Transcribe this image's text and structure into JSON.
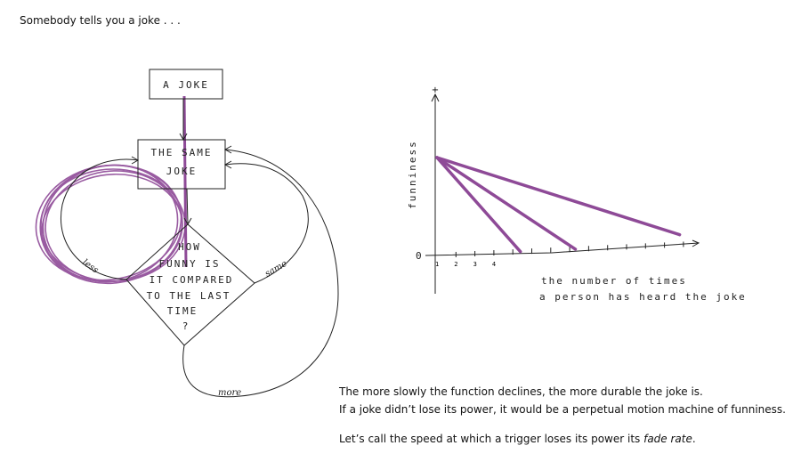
{
  "intro": "Somebody tells you a joke . . .",
  "flowchart": {
    "start_box": "A JOKE",
    "repeat_box": [
      "THE SAME",
      "JOKE"
    ],
    "decision": [
      "HOW",
      "FUNNY IS",
      "IT COMPARED",
      "TO THE LAST",
      "TIME",
      "?"
    ],
    "edge_less": "less",
    "edge_same": "same",
    "edge_more": "more",
    "highlight_color": "#8e4a97"
  },
  "chart_data": {
    "type": "line",
    "ylabel": "funniness",
    "xlabel": [
      "the number of times",
      "a person has heard the joke"
    ],
    "y_ticks": [
      "0",
      "+"
    ],
    "x_tick_labels": [
      "1",
      "2",
      "3",
      "4"
    ],
    "series": [
      {
        "x": [
          1,
          5.4
        ],
        "y": [
          1,
          0
        ]
      },
      {
        "x": [
          1,
          8.3
        ],
        "y": [
          1,
          0
        ]
      },
      {
        "x": [
          1,
          13.8
        ],
        "y": [
          1,
          0.1
        ]
      }
    ],
    "color": "#8e4a97"
  },
  "caption": {
    "line1": "The more slowly the function declines, the more durable the joke is.",
    "line2": "If a joke didn’t lose its power, it would be a perpetual motion machine of funniness.",
    "line3_prefix": "Let’s call the speed at which a trigger loses its power its ",
    "line3_emph": "fade rate",
    "line3_suffix": "."
  }
}
